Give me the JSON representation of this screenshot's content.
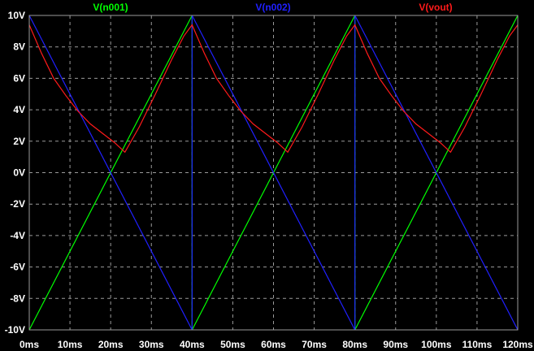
{
  "chart_data": {
    "type": "line",
    "title": "",
    "xlabel": "",
    "ylabel": "",
    "xlim": [
      0,
      120
    ],
    "ylim": [
      -10,
      10
    ],
    "x_unit": "ms",
    "y_unit": "V",
    "grid": true,
    "legend_position": "top",
    "background": "#000000",
    "x_ticks": [
      "0ms",
      "10ms",
      "20ms",
      "30ms",
      "40ms",
      "50ms",
      "60ms",
      "70ms",
      "80ms",
      "90ms",
      "100ms",
      "110ms",
      "120ms"
    ],
    "x_tick_values": [
      0,
      10,
      20,
      30,
      40,
      50,
      60,
      70,
      80,
      90,
      100,
      110,
      120
    ],
    "y_ticks": [
      "10V",
      "8V",
      "6V",
      "4V",
      "2V",
      "0V",
      "-2V",
      "-4V",
      "-6V",
      "-8V",
      "-10V"
    ],
    "y_tick_values": [
      10,
      8,
      6,
      4,
      2,
      0,
      -2,
      -4,
      -6,
      -8,
      -10
    ],
    "series": [
      {
        "name": "V(n001)",
        "color": "#00ff00",
        "x": [
          0,
          40,
          40,
          80,
          80,
          120
        ],
        "y": [
          -10,
          10,
          -10,
          10,
          -10,
          10
        ]
      },
      {
        "name": "V(n002)",
        "color": "#2020ff",
        "x": [
          0,
          40,
          40,
          80,
          80,
          120
        ],
        "y": [
          10,
          -10,
          10,
          -10,
          10,
          -10
        ]
      },
      {
        "name": "V(vout)",
        "color": "#ff1a1a",
        "x": [
          0,
          3,
          6,
          9,
          12,
          15,
          18,
          21,
          23.5,
          27,
          31,
          35,
          38,
          40,
          43,
          46,
          49,
          52,
          55,
          58,
          61,
          63.5,
          67,
          71,
          75,
          78,
          80,
          83,
          86,
          89,
          92,
          95,
          98,
          101,
          103.5,
          107,
          111,
          115,
          118,
          120
        ],
        "y": [
          9.4,
          7.6,
          6.0,
          4.9,
          3.9,
          3.1,
          2.5,
          1.9,
          1.3,
          2.9,
          5.0,
          7.2,
          8.7,
          9.4,
          7.6,
          6.0,
          4.9,
          3.9,
          3.1,
          2.5,
          1.9,
          1.3,
          2.9,
          5.0,
          7.2,
          8.7,
          9.4,
          7.6,
          6.0,
          4.9,
          3.9,
          3.1,
          2.5,
          1.9,
          1.3,
          2.9,
          5.0,
          7.2,
          8.7,
          9.4
        ]
      }
    ]
  }
}
